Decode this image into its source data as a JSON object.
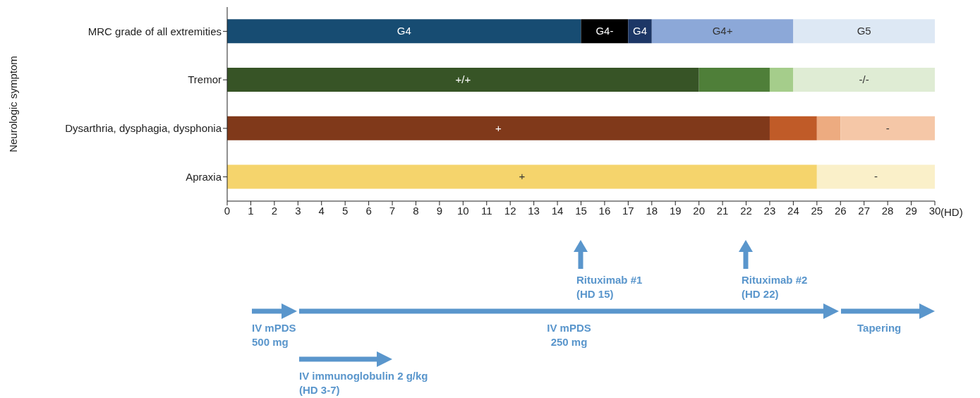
{
  "chart_data": {
    "type": "bar",
    "orientation": "horizontal",
    "stacked": true,
    "ylabel": "Neurologic symptom",
    "xlabel": "(HD)",
    "categories": [
      "MRC grade of all extremities",
      "Tremor",
      "Dysarthria, dysphagia, dysphonia",
      "Apraxia"
    ],
    "series": [
      {
        "values": [
          15,
          20,
          23,
          25
        ],
        "colors": [
          "#174c72",
          "#375426",
          "#80391a",
          "#f5d46c"
        ],
        "value_labels": [
          "G4",
          "+/+",
          "+",
          "+"
        ]
      },
      {
        "values": [
          2,
          3,
          2,
          5
        ],
        "colors": [
          "#000000",
          "#4f7f39",
          "#c05b28",
          "#faf0c9"
        ],
        "value_labels": [
          "G4-",
          null,
          null,
          "-"
        ]
      },
      {
        "values": [
          1,
          1,
          1,
          null
        ],
        "colors": [
          "#1d3766",
          "#a5cd8b",
          "#edab80",
          null
        ],
        "value_labels": [
          "G4",
          null,
          null,
          null
        ]
      },
      {
        "values": [
          6,
          6,
          4,
          null
        ],
        "colors": [
          "#8ca8d8",
          "#dfecd4",
          "#f5c7a7",
          null
        ],
        "value_labels": [
          "G4+",
          "-/-",
          "-",
          null
        ]
      },
      {
        "values": [
          6,
          null,
          null,
          null
        ],
        "colors": [
          "#dde8f4",
          null,
          null,
          null
        ],
        "value_labels": [
          "G5",
          null,
          null,
          null
        ]
      }
    ],
    "xlim": [
      0,
      30
    ],
    "xticks": [
      0,
      1,
      2,
      3,
      4,
      5,
      6,
      7,
      8,
      9,
      10,
      11,
      12,
      13,
      14,
      15,
      16,
      17,
      18,
      19,
      20,
      21,
      22,
      23,
      24,
      25,
      26,
      27,
      28,
      29,
      30
    ],
    "annotations": [
      "Rituximab #1\n(HD 15)",
      "Rituximab #2\n(HD 22)",
      "IV mPDS\n500 mg",
      "IV mPDS\n250 mg",
      "Tapering",
      "IV immunoglobulin 2 g/kg\n(HD 3-7)"
    ]
  }
}
